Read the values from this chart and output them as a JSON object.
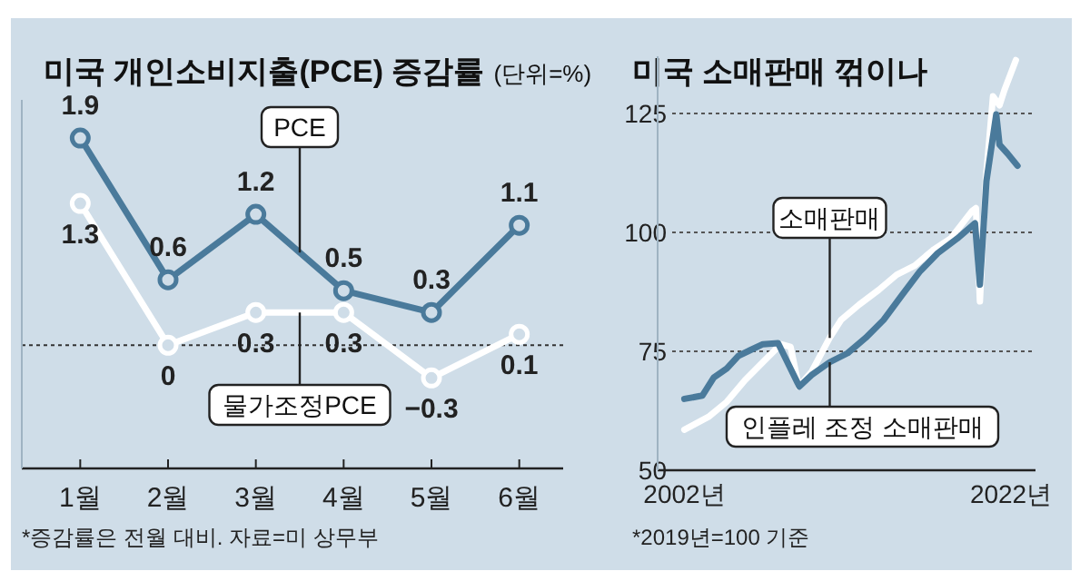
{
  "chart_data": [
    {
      "type": "line",
      "title": "미국 개인소비지출(PCE) 증감률",
      "subtitle": "(단위=%)",
      "categories": [
        "1월",
        "2월",
        "3월",
        "4월",
        "5월",
        "6월"
      ],
      "series": [
        {
          "name": "PCE",
          "color": "#4a7a9b",
          "values": [
            1.9,
            0.6,
            1.2,
            0.5,
            0.3,
            1.1
          ]
        },
        {
          "name": "물가조정PCE",
          "color": "#ffffff",
          "values": [
            1.3,
            0,
            0.3,
            0.3,
            -0.3,
            0.1
          ]
        }
      ],
      "ylim": [
        -1.13,
        2.25
      ],
      "tick_labels": "x",
      "data_labels": true,
      "marker": "circle",
      "line_style": "solid",
      "ref_lines": [
        {
          "axis": "y",
          "value": 0,
          "label": null,
          "color": "#333333",
          "line_style": "dotted"
        }
      ],
      "annotations": [
        "*증감률은 전월 대비. 자료=미 상무부"
      ]
    },
    {
      "type": "line",
      "title": "미국 소매판매 꺾이나",
      "series": [
        {
          "name": "소매판매",
          "color": "#ffffff",
          "x": [
            2002.0,
            2003.48,
            2004.6,
            2005.7,
            2006.8,
            2007.9,
            2008.5,
            2009.0,
            2009.8,
            2010.9,
            2011.6,
            2012.7,
            2013.9,
            2015.0,
            2016.1,
            2017.2,
            2018.3,
            2019.6,
            2019.85,
            2020.1,
            2020.45,
            2020.9,
            2021.3,
            2021.6,
            2022.3
          ],
          "values": [
            58.5,
            61.2,
            64.4,
            68.9,
            72.7,
            76.5,
            75.9,
            67.6,
            70.8,
            77.8,
            81.6,
            84.8,
            87.9,
            91.1,
            93,
            96.2,
            98.7,
            104.4,
            105.1,
            85.5,
            110.8,
            128.6,
            126.7,
            129.9,
            136.2
          ]
        },
        {
          "name": "인플레 조정 소매판매",
          "color": "#4a7a9b",
          "x": [
            2002.0,
            2003.1,
            2003.8,
            2004.6,
            2005.3,
            2006.0,
            2006.8,
            2007.74,
            2009.04,
            2009.78,
            2010.9,
            2012.0,
            2013.1,
            2014.2,
            2015.3,
            2016.4,
            2017.5,
            2018.7,
            2019.8,
            2020.1,
            2020.5,
            2021.1,
            2021.3,
            2021.8,
            2022.4
          ],
          "values": [
            65,
            65.7,
            69.5,
            71.4,
            74,
            75.2,
            76.5,
            76.7,
            67.6,
            70,
            72.7,
            74.6,
            77.8,
            81.6,
            86.7,
            91.7,
            95.6,
            98.7,
            101.9,
            89,
            110.8,
            124.8,
            118.4,
            116.5,
            114
          ]
        }
      ],
      "xlim": [
        2001.25,
        2023.5
      ],
      "xticks": [
        {
          "value": 2002,
          "label": "2002년"
        },
        {
          "value": 2022,
          "label": "2022년"
        }
      ],
      "ylim": [
        50,
        137
      ],
      "yticks": [
        50,
        75,
        100,
        125
      ],
      "grid": "y",
      "marker": "none",
      "line_style": "solid",
      "annotations": [
        "*2019년=100 기준"
      ]
    }
  ]
}
